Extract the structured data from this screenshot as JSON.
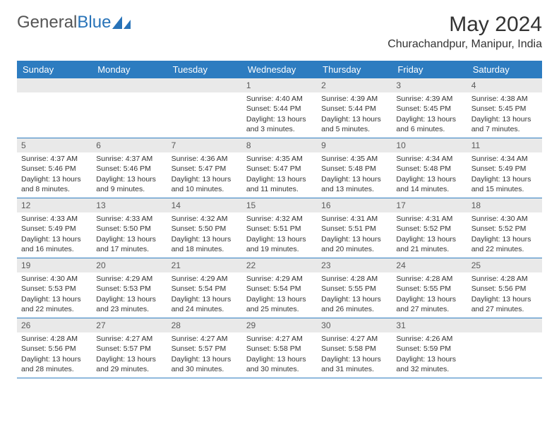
{
  "logo": {
    "text1": "General",
    "text2": "Blue"
  },
  "title": "May 2024",
  "location": "Churachandpur, Manipur, India",
  "day_names": [
    "Sunday",
    "Monday",
    "Tuesday",
    "Wednesday",
    "Thursday",
    "Friday",
    "Saturday"
  ],
  "colors": {
    "header_bg": "#2d7cc0",
    "header_text": "#ffffff",
    "daynum_bg": "#e9e9e9",
    "border": "#2d7cc0",
    "brand_blue": "#2873b8"
  },
  "weeks": [
    [
      {
        "n": "",
        "l1": "",
        "l2": "",
        "l3": "",
        "l4": ""
      },
      {
        "n": "",
        "l1": "",
        "l2": "",
        "l3": "",
        "l4": ""
      },
      {
        "n": "",
        "l1": "",
        "l2": "",
        "l3": "",
        "l4": ""
      },
      {
        "n": "1",
        "l1": "Sunrise: 4:40 AM",
        "l2": "Sunset: 5:44 PM",
        "l3": "Daylight: 13 hours",
        "l4": "and 3 minutes."
      },
      {
        "n": "2",
        "l1": "Sunrise: 4:39 AM",
        "l2": "Sunset: 5:44 PM",
        "l3": "Daylight: 13 hours",
        "l4": "and 5 minutes."
      },
      {
        "n": "3",
        "l1": "Sunrise: 4:39 AM",
        "l2": "Sunset: 5:45 PM",
        "l3": "Daylight: 13 hours",
        "l4": "and 6 minutes."
      },
      {
        "n": "4",
        "l1": "Sunrise: 4:38 AM",
        "l2": "Sunset: 5:45 PM",
        "l3": "Daylight: 13 hours",
        "l4": "and 7 minutes."
      }
    ],
    [
      {
        "n": "5",
        "l1": "Sunrise: 4:37 AM",
        "l2": "Sunset: 5:46 PM",
        "l3": "Daylight: 13 hours",
        "l4": "and 8 minutes."
      },
      {
        "n": "6",
        "l1": "Sunrise: 4:37 AM",
        "l2": "Sunset: 5:46 PM",
        "l3": "Daylight: 13 hours",
        "l4": "and 9 minutes."
      },
      {
        "n": "7",
        "l1": "Sunrise: 4:36 AM",
        "l2": "Sunset: 5:47 PM",
        "l3": "Daylight: 13 hours",
        "l4": "and 10 minutes."
      },
      {
        "n": "8",
        "l1": "Sunrise: 4:35 AM",
        "l2": "Sunset: 5:47 PM",
        "l3": "Daylight: 13 hours",
        "l4": "and 11 minutes."
      },
      {
        "n": "9",
        "l1": "Sunrise: 4:35 AM",
        "l2": "Sunset: 5:48 PM",
        "l3": "Daylight: 13 hours",
        "l4": "and 13 minutes."
      },
      {
        "n": "10",
        "l1": "Sunrise: 4:34 AM",
        "l2": "Sunset: 5:48 PM",
        "l3": "Daylight: 13 hours",
        "l4": "and 14 minutes."
      },
      {
        "n": "11",
        "l1": "Sunrise: 4:34 AM",
        "l2": "Sunset: 5:49 PM",
        "l3": "Daylight: 13 hours",
        "l4": "and 15 minutes."
      }
    ],
    [
      {
        "n": "12",
        "l1": "Sunrise: 4:33 AM",
        "l2": "Sunset: 5:49 PM",
        "l3": "Daylight: 13 hours",
        "l4": "and 16 minutes."
      },
      {
        "n": "13",
        "l1": "Sunrise: 4:33 AM",
        "l2": "Sunset: 5:50 PM",
        "l3": "Daylight: 13 hours",
        "l4": "and 17 minutes."
      },
      {
        "n": "14",
        "l1": "Sunrise: 4:32 AM",
        "l2": "Sunset: 5:50 PM",
        "l3": "Daylight: 13 hours",
        "l4": "and 18 minutes."
      },
      {
        "n": "15",
        "l1": "Sunrise: 4:32 AM",
        "l2": "Sunset: 5:51 PM",
        "l3": "Daylight: 13 hours",
        "l4": "and 19 minutes."
      },
      {
        "n": "16",
        "l1": "Sunrise: 4:31 AM",
        "l2": "Sunset: 5:51 PM",
        "l3": "Daylight: 13 hours",
        "l4": "and 20 minutes."
      },
      {
        "n": "17",
        "l1": "Sunrise: 4:31 AM",
        "l2": "Sunset: 5:52 PM",
        "l3": "Daylight: 13 hours",
        "l4": "and 21 minutes."
      },
      {
        "n": "18",
        "l1": "Sunrise: 4:30 AM",
        "l2": "Sunset: 5:52 PM",
        "l3": "Daylight: 13 hours",
        "l4": "and 22 minutes."
      }
    ],
    [
      {
        "n": "19",
        "l1": "Sunrise: 4:30 AM",
        "l2": "Sunset: 5:53 PM",
        "l3": "Daylight: 13 hours",
        "l4": "and 22 minutes."
      },
      {
        "n": "20",
        "l1": "Sunrise: 4:29 AM",
        "l2": "Sunset: 5:53 PM",
        "l3": "Daylight: 13 hours",
        "l4": "and 23 minutes."
      },
      {
        "n": "21",
        "l1": "Sunrise: 4:29 AM",
        "l2": "Sunset: 5:54 PM",
        "l3": "Daylight: 13 hours",
        "l4": "and 24 minutes."
      },
      {
        "n": "22",
        "l1": "Sunrise: 4:29 AM",
        "l2": "Sunset: 5:54 PM",
        "l3": "Daylight: 13 hours",
        "l4": "and 25 minutes."
      },
      {
        "n": "23",
        "l1": "Sunrise: 4:28 AM",
        "l2": "Sunset: 5:55 PM",
        "l3": "Daylight: 13 hours",
        "l4": "and 26 minutes."
      },
      {
        "n": "24",
        "l1": "Sunrise: 4:28 AM",
        "l2": "Sunset: 5:55 PM",
        "l3": "Daylight: 13 hours",
        "l4": "and 27 minutes."
      },
      {
        "n": "25",
        "l1": "Sunrise: 4:28 AM",
        "l2": "Sunset: 5:56 PM",
        "l3": "Daylight: 13 hours",
        "l4": "and 27 minutes."
      }
    ],
    [
      {
        "n": "26",
        "l1": "Sunrise: 4:28 AM",
        "l2": "Sunset: 5:56 PM",
        "l3": "Daylight: 13 hours",
        "l4": "and 28 minutes."
      },
      {
        "n": "27",
        "l1": "Sunrise: 4:27 AM",
        "l2": "Sunset: 5:57 PM",
        "l3": "Daylight: 13 hours",
        "l4": "and 29 minutes."
      },
      {
        "n": "28",
        "l1": "Sunrise: 4:27 AM",
        "l2": "Sunset: 5:57 PM",
        "l3": "Daylight: 13 hours",
        "l4": "and 30 minutes."
      },
      {
        "n": "29",
        "l1": "Sunrise: 4:27 AM",
        "l2": "Sunset: 5:58 PM",
        "l3": "Daylight: 13 hours",
        "l4": "and 30 minutes."
      },
      {
        "n": "30",
        "l1": "Sunrise: 4:27 AM",
        "l2": "Sunset: 5:58 PM",
        "l3": "Daylight: 13 hours",
        "l4": "and 31 minutes."
      },
      {
        "n": "31",
        "l1": "Sunrise: 4:26 AM",
        "l2": "Sunset: 5:59 PM",
        "l3": "Daylight: 13 hours",
        "l4": "and 32 minutes."
      },
      {
        "n": "",
        "l1": "",
        "l2": "",
        "l3": "",
        "l4": ""
      }
    ]
  ]
}
